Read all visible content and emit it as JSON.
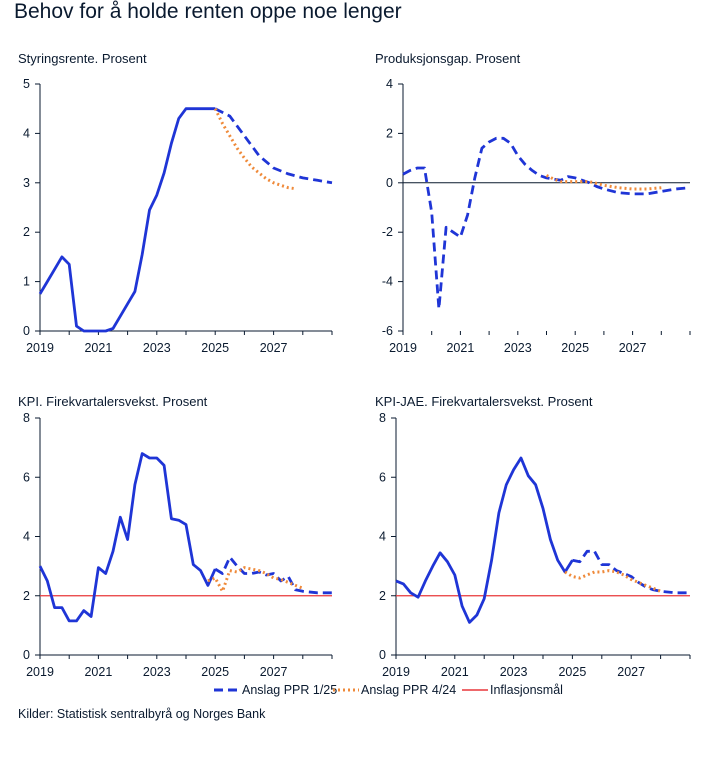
{
  "title": "Behov for å holde renten oppe noe lenger",
  "source": "Kilder: Statistisk sentralbyrå og Norges Bank",
  "legend": {
    "items": [
      {
        "label": "Anslag PPR 1/25",
        "color": "#1f35d6",
        "style": "dashed"
      },
      {
        "label": "Anslag PPR 4/24",
        "color": "#ef8a3a",
        "style": "dotted"
      },
      {
        "label": "Inflasjonsmål",
        "color": "#e8373a",
        "style": "solid"
      }
    ]
  },
  "colors": {
    "ppr125": "#1f35d6",
    "ppr424": "#ef8a3a",
    "target": "#e8373a",
    "axis": "#0a1a2f"
  },
  "chart_data": [
    {
      "type": "line",
      "title": "Styringsrente. Prosent",
      "xlim": [
        2019,
        2029
      ],
      "ylim": [
        0,
        5
      ],
      "yticks": [
        0,
        1,
        2,
        3,
        4,
        5
      ],
      "xticks": [
        2019,
        2021,
        2023,
        2025,
        2027
      ],
      "zero_line": false,
      "series": [
        {
          "name": "Anslag PPR 1/25",
          "x": [
            2019.0,
            2019.25,
            2019.5,
            2019.75,
            2020.0,
            2020.25,
            2020.5,
            2020.75,
            2021.0,
            2021.25,
            2021.5,
            2021.75,
            2022.0,
            2022.25,
            2022.5,
            2022.75,
            2023.0,
            2023.25,
            2023.5,
            2023.75,
            2024.0,
            2024.25,
            2024.5,
            2024.75,
            2025.0
          ],
          "y": [
            0.75,
            1.0,
            1.25,
            1.5,
            1.35,
            0.1,
            0.0,
            0.0,
            0.0,
            0.0,
            0.05,
            0.3,
            0.55,
            0.8,
            1.55,
            2.45,
            2.75,
            3.2,
            3.8,
            4.3,
            4.5,
            4.5,
            4.5,
            4.5,
            4.5
          ],
          "style": "solid"
        },
        {
          "name": "Anslag PPR 1/25",
          "x": [
            2025.0,
            2025.5,
            2026.0,
            2026.5,
            2027.0,
            2027.5,
            2028.0,
            2028.5,
            2029.0
          ],
          "y": [
            4.5,
            4.35,
            3.95,
            3.55,
            3.3,
            3.18,
            3.1,
            3.05,
            3.0
          ],
          "style": "dashed"
        },
        {
          "name": "Anslag PPR 4/24",
          "x": [
            2025.0,
            2025.25,
            2025.5,
            2025.75,
            2026.0,
            2026.25,
            2026.5,
            2026.75,
            2027.0,
            2027.25,
            2027.5,
            2027.75
          ],
          "y": [
            4.5,
            4.2,
            3.95,
            3.7,
            3.5,
            3.32,
            3.2,
            3.08,
            3.0,
            2.95,
            2.9,
            2.88
          ],
          "style": "dotted"
        }
      ]
    },
    {
      "type": "line",
      "title": "Produksjonsgap. Prosent",
      "xlim": [
        2019,
        2029
      ],
      "ylim": [
        -6,
        4
      ],
      "yticks": [
        -6,
        -4,
        -2,
        0,
        2,
        4
      ],
      "xticks": [
        2019,
        2021,
        2023,
        2025,
        2027
      ],
      "zero_line": true,
      "series": [
        {
          "name": "Anslag PPR 1/25",
          "x": [
            2019.0,
            2019.25,
            2019.5,
            2019.75,
            2020.0,
            2020.25,
            2020.5,
            2020.75,
            2021.0,
            2021.25,
            2021.5,
            2021.75,
            2022.0,
            2022.25,
            2022.5,
            2022.75,
            2023.0,
            2023.25,
            2023.5,
            2023.75,
            2024.0,
            2024.25,
            2024.5,
            2024.75,
            2025.0,
            2025.25,
            2025.5,
            2025.75,
            2026.0,
            2026.5,
            2027.0,
            2027.5,
            2028.0,
            2028.5,
            2029.0
          ],
          "y": [
            0.35,
            0.5,
            0.6,
            0.6,
            -1.2,
            -5.1,
            -1.8,
            -2.0,
            -2.2,
            -1.3,
            0.2,
            1.4,
            1.65,
            1.8,
            1.8,
            1.6,
            1.1,
            0.75,
            0.5,
            0.3,
            0.2,
            0.15,
            0.1,
            0.25,
            0.2,
            0.1,
            0.0,
            -0.15,
            -0.25,
            -0.4,
            -0.45,
            -0.45,
            -0.35,
            -0.25,
            -0.2
          ],
          "style": "dashed"
        },
        {
          "name": "Anslag PPR 4/24",
          "x": [
            2024.0,
            2024.25,
            2024.5,
            2024.75,
            2025.0,
            2025.5,
            2026.0,
            2026.5,
            2027.0,
            2027.5,
            2028.0
          ],
          "y": [
            0.3,
            0.15,
            0.05,
            0.05,
            0.05,
            0.05,
            -0.1,
            -0.2,
            -0.25,
            -0.25,
            -0.2
          ],
          "style": "dotted"
        }
      ]
    },
    {
      "type": "line",
      "title": "KPI. Firekvartalersvekst. Prosent",
      "xlim": [
        2019,
        2029
      ],
      "ylim": [
        0,
        8
      ],
      "yticks": [
        0,
        2,
        4,
        6,
        8
      ],
      "xticks": [
        2019,
        2021,
        2023,
        2025,
        2027
      ],
      "zero_line": false,
      "target": 2,
      "series": [
        {
          "name": "Anslag PPR 1/25",
          "x": [
            2019.0,
            2019.25,
            2019.5,
            2019.75,
            2020.0,
            2020.25,
            2020.5,
            2020.75,
            2021.0,
            2021.25,
            2021.5,
            2021.75,
            2022.0,
            2022.25,
            2022.5,
            2022.75,
            2023.0,
            2023.25,
            2023.5,
            2023.75,
            2024.0,
            2024.25,
            2024.5,
            2024.75,
            2025.0
          ],
          "y": [
            3.0,
            2.5,
            1.6,
            1.6,
            1.15,
            1.15,
            1.5,
            1.3,
            2.95,
            2.75,
            3.5,
            4.65,
            3.9,
            5.75,
            6.8,
            6.65,
            6.65,
            6.4,
            4.6,
            4.55,
            4.4,
            3.05,
            2.85,
            2.35,
            2.9
          ],
          "style": "solid"
        },
        {
          "name": "Anslag PPR 1/25",
          "x": [
            2025.0,
            2025.25,
            2025.5,
            2025.75,
            2026.0,
            2026.25,
            2026.5,
            2026.75,
            2027.0,
            2027.25,
            2027.5,
            2027.75,
            2028.0,
            2028.5,
            2029.0
          ],
          "y": [
            2.9,
            2.75,
            3.3,
            3.0,
            2.75,
            2.75,
            2.8,
            2.7,
            2.75,
            2.5,
            2.65,
            2.2,
            2.15,
            2.1,
            2.1
          ],
          "style": "dashed"
        },
        {
          "name": "Anslag PPR 4/24",
          "x": [
            2024.75,
            2025.0,
            2025.25,
            2025.5,
            2025.75,
            2026.0,
            2026.25,
            2026.5,
            2026.75,
            2027.0,
            2027.25,
            2027.5,
            2027.75,
            2028.0
          ],
          "y": [
            2.5,
            2.6,
            2.15,
            2.85,
            2.8,
            2.95,
            2.9,
            2.85,
            2.75,
            2.6,
            2.55,
            2.45,
            2.35,
            2.25
          ],
          "style": "dotted"
        }
      ]
    },
    {
      "type": "line",
      "title": "KPI-JAE. Firekvartalersvekst. Prosent",
      "xlim": [
        2019,
        2029
      ],
      "ylim": [
        0,
        8
      ],
      "yticks": [
        0,
        2,
        4,
        6,
        8
      ],
      "xticks": [
        2019,
        2021,
        2023,
        2025,
        2027
      ],
      "zero_line": false,
      "target": 2,
      "series": [
        {
          "name": "Anslag PPR 1/25",
          "x": [
            2019.0,
            2019.25,
            2019.5,
            2019.75,
            2020.0,
            2020.25,
            2020.5,
            2020.75,
            2021.0,
            2021.25,
            2021.5,
            2021.75,
            2022.0,
            2022.25,
            2022.5,
            2022.75,
            2023.0,
            2023.25,
            2023.5,
            2023.75,
            2024.0,
            2024.25,
            2024.5,
            2024.75,
            2025.0
          ],
          "y": [
            2.5,
            2.4,
            2.1,
            1.95,
            2.5,
            3.0,
            3.45,
            3.15,
            2.7,
            1.65,
            1.1,
            1.35,
            1.9,
            3.2,
            4.8,
            5.75,
            6.25,
            6.65,
            6.05,
            5.75,
            4.95,
            3.9,
            3.2,
            2.8,
            3.2
          ],
          "style": "solid"
        },
        {
          "name": "Anslag PPR 1/25",
          "x": [
            2025.0,
            2025.25,
            2025.5,
            2025.75,
            2026.0,
            2026.25,
            2026.5,
            2026.75,
            2027.0,
            2027.25,
            2027.5,
            2027.75,
            2028.0,
            2028.5,
            2029.0
          ],
          "y": [
            3.2,
            3.15,
            3.5,
            3.5,
            3.05,
            3.05,
            2.85,
            2.75,
            2.65,
            2.45,
            2.3,
            2.2,
            2.15,
            2.1,
            2.1
          ],
          "style": "dashed"
        },
        {
          "name": "Anslag PPR 4/24",
          "x": [
            2024.75,
            2025.0,
            2025.25,
            2025.5,
            2025.75,
            2026.0,
            2026.25,
            2026.5,
            2026.75,
            2027.0,
            2027.25,
            2027.5,
            2027.75,
            2028.0
          ],
          "y": [
            2.8,
            2.65,
            2.6,
            2.7,
            2.8,
            2.8,
            2.85,
            2.8,
            2.7,
            2.55,
            2.45,
            2.35,
            2.25,
            2.15
          ],
          "style": "dotted"
        }
      ]
    }
  ]
}
